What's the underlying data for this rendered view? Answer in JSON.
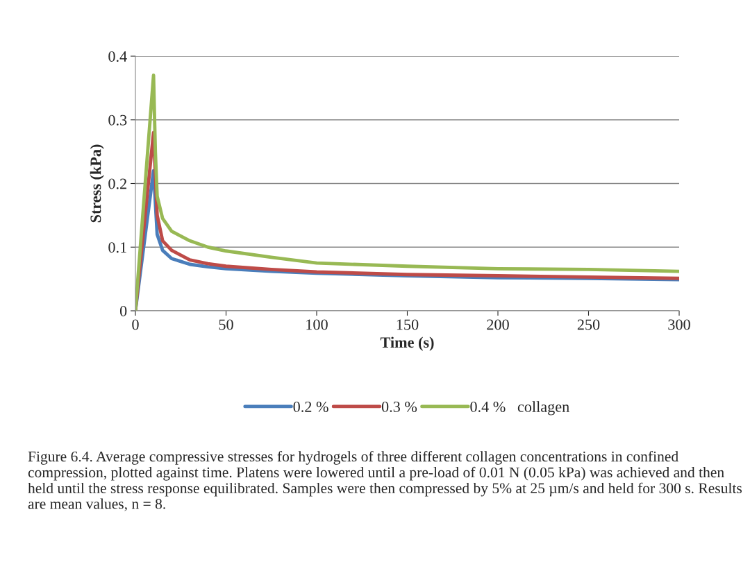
{
  "chart_data": {
    "type": "line",
    "xlabel": "Time (s)",
    "ylabel": "Stress (kPa)",
    "xlim": [
      0,
      300
    ],
    "xticks": [
      0,
      50,
      100,
      150,
      200,
      250,
      300
    ],
    "ylim": [
      0,
      0.4
    ],
    "yticks": [
      0,
      0.1,
      0.2,
      0.3,
      0.4
    ],
    "grid": "y",
    "legend": "bottom",
    "marker": "none",
    "line_style": "solid",
    "series": [
      {
        "name": "0.2 %",
        "color": "#4a7ebb",
        "x": [
          0,
          10,
          12,
          15,
          20,
          30,
          40,
          50,
          75,
          100,
          150,
          200,
          250,
          300
        ],
        "values": [
          0,
          0.22,
          0.12,
          0.095,
          0.082,
          0.073,
          0.069,
          0.066,
          0.062,
          0.059,
          0.055,
          0.052,
          0.051,
          0.049
        ]
      },
      {
        "name": "0.3 %",
        "color": "#be4b48",
        "x": [
          0,
          10,
          12,
          15,
          20,
          30,
          40,
          50,
          75,
          100,
          150,
          200,
          250,
          300
        ],
        "values": [
          0,
          0.28,
          0.15,
          0.11,
          0.095,
          0.08,
          0.074,
          0.07,
          0.065,
          0.061,
          0.057,
          0.055,
          0.053,
          0.051
        ]
      },
      {
        "name": "0.4 %   collagen",
        "color": "#98b954",
        "x": [
          0,
          10,
          11,
          12,
          15,
          20,
          30,
          40,
          50,
          75,
          100,
          150,
          200,
          250,
          300
        ],
        "values": [
          0,
          0.37,
          0.25,
          0.18,
          0.145,
          0.125,
          0.11,
          0.1,
          0.094,
          0.084,
          0.075,
          0.07,
          0.066,
          0.065,
          0.062
        ]
      }
    ],
    "annotations": [
      "Figure 6.4. Average compressive stresses for hydrogels of three different collagen concentrations in confined compression, plotted against time. Platens were lowered until a pre-load of 0.01 N (0.05 kPa) was achieved and then held until the stress response equilibrated. Samples were then compressed by 5% at 25 µm/s and held for 300 s. Results are mean values, n = 8."
    ]
  }
}
